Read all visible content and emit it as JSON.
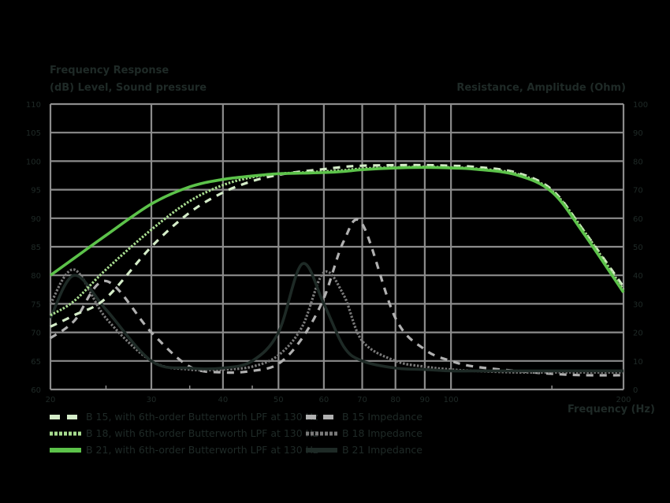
{
  "chart_data": {
    "type": "line",
    "title": "Frequency Response",
    "ylabel": "(dB) Level, Sound pressure",
    "ylabel_right": "Resistance, Amplitude (Ohm)",
    "xlabel": "Frequency (Hz)",
    "xscale": "log",
    "xlim": [
      20,
      200
    ],
    "ylim": [
      60,
      110
    ],
    "ylim_right": [
      0,
      100
    ],
    "x_ticks": [
      20,
      30,
      40,
      50,
      60,
      70,
      80,
      90,
      100,
      200
    ],
    "y_ticks": [
      60,
      65,
      70,
      75,
      80,
      85,
      90,
      95,
      100,
      105,
      110
    ],
    "y_ticks_right": [
      0,
      10,
      20,
      30,
      40,
      50,
      60,
      70,
      80,
      90,
      100
    ],
    "grid": true,
    "legend_position": "bottom",
    "x": [
      20,
      22,
      25,
      30,
      35,
      40,
      45,
      50,
      55,
      60,
      65,
      70,
      80,
      90,
      100,
      110,
      130,
      150,
      170,
      200
    ],
    "series": [
      {
        "name": "B 15, with 6th-order Butterworth LPF at 130 Hz",
        "axis": "left",
        "style": "dashed",
        "color": "#d4ecc8",
        "values": [
          71,
          73,
          76,
          85,
          91,
          94.5,
          96.5,
          97.6,
          98.2,
          98.6,
          99,
          99.2,
          99.3,
          99.3,
          99.2,
          99.0,
          98.0,
          95.0,
          88.0,
          78.0
        ]
      },
      {
        "name": "B 18, with 6th-order Butterworth LPF at 130 Hz",
        "axis": "left",
        "style": "dotted",
        "color": "#a8dc90",
        "values": [
          73,
          75.5,
          81,
          88,
          93,
          95.8,
          97.2,
          97.8,
          98.0,
          98.2,
          98.4,
          98.7,
          98.9,
          99.0,
          98.9,
          98.7,
          97.8,
          94.8,
          88.0,
          77.5
        ]
      },
      {
        "name": "B 21, with 6th-order Butterworth LPF at 130 Hz",
        "axis": "left",
        "style": "solid",
        "color": "#5cc24a",
        "values": [
          80,
          83,
          87,
          92.5,
          95.5,
          96.8,
          97.4,
          97.8,
          97.9,
          98.0,
          98.2,
          98.5,
          98.8,
          98.9,
          98.8,
          98.6,
          97.6,
          94.6,
          87.5,
          77.0
        ]
      },
      {
        "name": "B 15 Impedance",
        "axis": "right",
        "style": "dashed",
        "color": "#b0b0b0",
        "values": [
          18,
          24,
          38,
          20,
          8,
          6,
          6.5,
          9,
          18,
          32,
          52,
          58,
          25,
          14,
          10,
          8,
          6.5,
          5.5,
          5,
          5
        ]
      },
      {
        "name": "B 18 Impedance",
        "axis": "right",
        "style": "dotted",
        "color": "#7a7a7a",
        "values": [
          30,
          42,
          25,
          10,
          7,
          7,
          8,
          12,
          22,
          41,
          33,
          17,
          10,
          8,
          7,
          6.5,
          6,
          6,
          6,
          6
        ]
      },
      {
        "name": "B 21 Impedance",
        "axis": "right",
        "style": "solid",
        "color": "#1e2a26",
        "values": [
          25,
          40,
          28,
          10,
          7.5,
          7.5,
          10,
          20,
          44,
          30,
          15,
          10,
          7.5,
          7,
          6.5,
          6.5,
          6.5,
          6.5,
          6.5,
          6.5
        ]
      }
    ],
    "annotations": []
  },
  "labels": {
    "title": "Frequency Response",
    "left_axis": "(dB) Level, Sound pressure",
    "right_axis": "Resistance, Amplitude (Ohm)",
    "x_axis": "Frequency (Hz)"
  },
  "legend": {
    "left": [
      {
        "label": "B 15, with 6th-order Butterworth LPF at 130 Hz",
        "color": "#d4ecc8",
        "style": "dashed"
      },
      {
        "label": "B 18, with 6th-order Butterworth LPF at 130 Hz",
        "color": "#a8dc90",
        "style": "dotted"
      },
      {
        "label": "B 21, with 6th-order Butterworth LPF at 130 Hz",
        "color": "#5cc24a",
        "style": "solid"
      }
    ],
    "right": [
      {
        "label": "B 15 Impedance",
        "color": "#b0b0b0",
        "style": "dashed"
      },
      {
        "label": "B 18 Impedance",
        "color": "#7a7a7a",
        "style": "dotted"
      },
      {
        "label": "B 21 Impedance",
        "color": "#1e2a26",
        "style": "solid"
      }
    ]
  }
}
